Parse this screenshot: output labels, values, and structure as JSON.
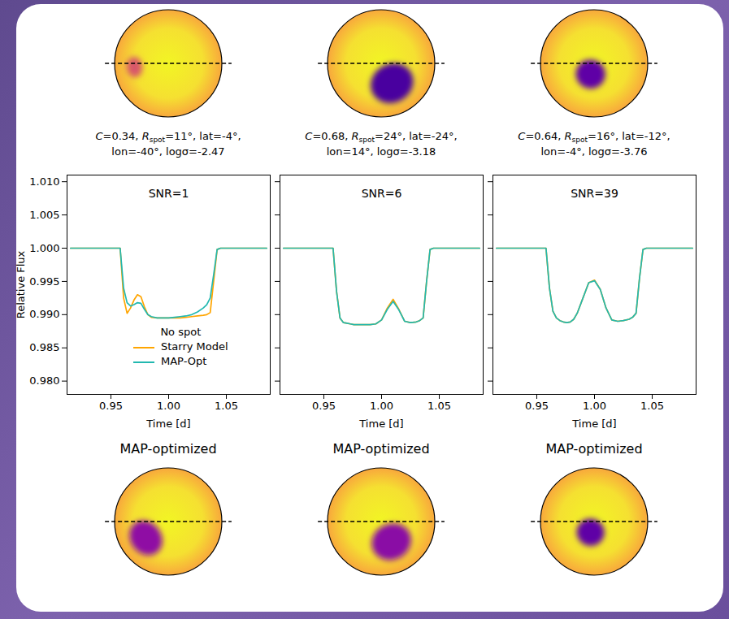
{
  "chart_data": [
    {
      "type": "line",
      "title": "SNR=1",
      "x_label": "Time [d]",
      "y_label": "Relative Flux",
      "spot_params": [
        {
          "symbol": "C",
          "value": 0.34
        },
        {
          "symbol": "R",
          "subscript": "spot",
          "value": 11,
          "unit": "°"
        },
        {
          "symbol": "lat",
          "value": -4,
          "unit": "°"
        },
        {
          "symbol": "lon",
          "value": -40,
          "unit": "°"
        },
        {
          "symbol": "logσ",
          "value": -2.47
        }
      ],
      "map_title": "MAP-optimized",
      "map_spot": {
        "contrast": 0.54,
        "radius": 20,
        "lat": -19,
        "lon": -28
      },
      "legend": "lower center",
      "legend_title": "No spot",
      "tick_labels": true,
      "xlim": [
        0.912,
        1.088
      ],
      "xticks": [
        0.95,
        {
          "value": 1.0,
          "label": "1.00"
        },
        1.05
      ],
      "ylim": [
        0.978,
        1.011
      ],
      "yticks": [
        {
          "value": 0.98,
          "label": "0.980"
        },
        {
          "value": 0.985,
          "label": "0.985"
        },
        {
          "value": 0.99,
          "label": "0.990"
        },
        {
          "value": 0.995,
          "label": "0.995"
        },
        {
          "value": 1.0,
          "label": "1.000"
        },
        {
          "value": 1.005,
          "label": "1.005"
        },
        {
          "value": 1.01,
          "label": "1.010"
        }
      ],
      "x": [
        0.915,
        0.94,
        0.955,
        0.958,
        0.961,
        0.964,
        0.967,
        0.97,
        0.973,
        0.976,
        0.979,
        0.982,
        0.985,
        0.99,
        0.995,
        1.0,
        1.005,
        1.01,
        1.015,
        1.02,
        1.025,
        1.03,
        1.033,
        1.036,
        1.039,
        1.042,
        1.045,
        1.06,
        1.085
      ],
      "series": [
        {
          "name": "Starry Model",
          "color": "#ffa500",
          "values": [
            1,
            1,
            1,
            1,
            0.9925,
            0.9902,
            0.991,
            0.9922,
            0.993,
            0.9927,
            0.9912,
            0.99,
            0.9896,
            0.9895,
            0.9895,
            0.9895,
            0.9895,
            0.9895,
            0.9896,
            0.9897,
            0.9898,
            0.9899,
            0.99,
            0.9903,
            0.995,
            0.9998,
            1,
            1,
            1
          ]
        },
        {
          "name": "MAP-Opt",
          "color": "#22b8b0",
          "values": [
            1,
            1,
            1,
            1,
            0.994,
            0.9918,
            0.9913,
            0.9915,
            0.9918,
            0.9917,
            0.9908,
            0.99,
            0.9897,
            0.9895,
            0.9895,
            0.9895,
            0.9896,
            0.9897,
            0.9898,
            0.99,
            0.9904,
            0.991,
            0.9915,
            0.9925,
            0.996,
            0.9998,
            1,
            1,
            1
          ]
        }
      ]
    },
    {
      "type": "line",
      "title": "SNR=6",
      "x_label": "Time [d]",
      "spot_params": [
        {
          "symbol": "C",
          "value": 0.68
        },
        {
          "symbol": "R",
          "subscript": "spot",
          "value": 24,
          "unit": "°"
        },
        {
          "symbol": "lat",
          "value": -24,
          "unit": "°"
        },
        {
          "symbol": "lon",
          "value": 14,
          "unit": "°"
        },
        {
          "symbol": "logσ",
          "value": -3.18
        }
      ],
      "map_title": "MAP-optimized",
      "map_spot": {
        "contrast": 0.55,
        "radius": 22,
        "lat": -24,
        "lon": 13
      },
      "tick_labels": "x",
      "xlim": [
        0.912,
        1.088
      ],
      "xticks": [
        0.95,
        {
          "value": 1.0,
          "label": "1.00"
        },
        1.05
      ],
      "ylim": [
        0.978,
        1.011
      ],
      "yticks": [
        {
          "value": 0.98,
          "label": "0.980"
        },
        {
          "value": 0.985,
          "label": "0.985"
        },
        {
          "value": 0.99,
          "label": "0.990"
        },
        {
          "value": 0.995,
          "label": "0.995"
        },
        {
          "value": 1.0,
          "label": "1.000"
        },
        {
          "value": 1.005,
          "label": "1.005"
        },
        {
          "value": 1.01,
          "label": "1.010"
        }
      ],
      "x": [
        0.915,
        0.94,
        0.955,
        0.958,
        0.961,
        0.964,
        0.967,
        0.97,
        0.973,
        0.976,
        0.979,
        0.982,
        0.985,
        0.99,
        0.995,
        1.0,
        1.005,
        1.01,
        1.015,
        1.02,
        1.025,
        1.03,
        1.033,
        1.036,
        1.039,
        1.042,
        1.045,
        1.06,
        1.085
      ],
      "series": [
        {
          "name": "Starry Model",
          "color": "#ffa500",
          "values": [
            1,
            1,
            1,
            1,
            0.9935,
            0.9895,
            0.9888,
            0.9887,
            0.9886,
            0.9885,
            0.9885,
            0.9885,
            0.9885,
            0.9885,
            0.9886,
            0.9892,
            0.991,
            0.9923,
            0.9908,
            0.989,
            0.9888,
            0.9889,
            0.9891,
            0.9895,
            0.995,
            0.9998,
            1,
            1,
            1
          ]
        },
        {
          "name": "MAP-Opt",
          "color": "#22b8b0",
          "values": [
            1,
            1,
            1,
            1,
            0.9935,
            0.9895,
            0.9888,
            0.9887,
            0.9886,
            0.9885,
            0.9885,
            0.9885,
            0.9885,
            0.9885,
            0.9886,
            0.9892,
            0.9908,
            0.992,
            0.9907,
            0.989,
            0.9888,
            0.9889,
            0.9891,
            0.9895,
            0.995,
            0.9998,
            1,
            1,
            1
          ]
        }
      ]
    },
    {
      "type": "line",
      "title": "SNR=39",
      "x_label": "Time [d]",
      "spot_params": [
        {
          "symbol": "C",
          "value": 0.64
        },
        {
          "symbol": "R",
          "subscript": "spot",
          "value": 16,
          "unit": "°"
        },
        {
          "symbol": "lat",
          "value": -12,
          "unit": "°"
        },
        {
          "symbol": "lon",
          "value": -4,
          "unit": "°"
        },
        {
          "symbol": "logσ",
          "value": -3.76
        }
      ],
      "map_title": "MAP-optimized",
      "map_spot": {
        "contrast": 0.64,
        "radius": 15,
        "lat": -12,
        "lon": -4
      },
      "tick_labels": "x",
      "xlim": [
        0.912,
        1.088
      ],
      "xticks": [
        0.95,
        {
          "value": 1.0,
          "label": "1.00"
        },
        1.05
      ],
      "ylim": [
        0.978,
        1.011
      ],
      "yticks": [
        {
          "value": 0.98,
          "label": "0.980"
        },
        {
          "value": 0.985,
          "label": "0.985"
        },
        {
          "value": 0.99,
          "label": "0.990"
        },
        {
          "value": 0.995,
          "label": "0.995"
        },
        {
          "value": 1.0,
          "label": "1.000"
        },
        {
          "value": 1.005,
          "label": "1.005"
        },
        {
          "value": 1.01,
          "label": "1.010"
        }
      ],
      "x": [
        0.915,
        0.94,
        0.955,
        0.958,
        0.961,
        0.964,
        0.967,
        0.97,
        0.973,
        0.976,
        0.979,
        0.982,
        0.985,
        0.99,
        0.995,
        1.0,
        1.005,
        1.01,
        1.015,
        1.02,
        1.025,
        1.03,
        1.033,
        1.036,
        1.039,
        1.042,
        1.045,
        1.06,
        1.085
      ],
      "series": [
        {
          "name": "Starry Model",
          "color": "#ffa500",
          "values": [
            1,
            1,
            1,
            1,
            0.994,
            0.9905,
            0.9895,
            0.9891,
            0.9889,
            0.9888,
            0.9889,
            0.9893,
            0.9902,
            0.9925,
            0.9948,
            0.9952,
            0.9938,
            0.991,
            0.9892,
            0.989,
            0.9891,
            0.9893,
            0.9896,
            0.9902,
            0.9955,
            0.9998,
            1,
            1,
            1
          ]
        },
        {
          "name": "MAP-Opt",
          "color": "#22b8b0",
          "values": [
            1,
            1,
            1,
            1,
            0.994,
            0.9905,
            0.9895,
            0.9891,
            0.9889,
            0.9888,
            0.9889,
            0.9893,
            0.9902,
            0.9925,
            0.9948,
            0.9951,
            0.9938,
            0.991,
            0.9892,
            0.989,
            0.9891,
            0.9893,
            0.9896,
            0.9902,
            0.9955,
            0.9998,
            1,
            1,
            1
          ]
        }
      ]
    }
  ]
}
